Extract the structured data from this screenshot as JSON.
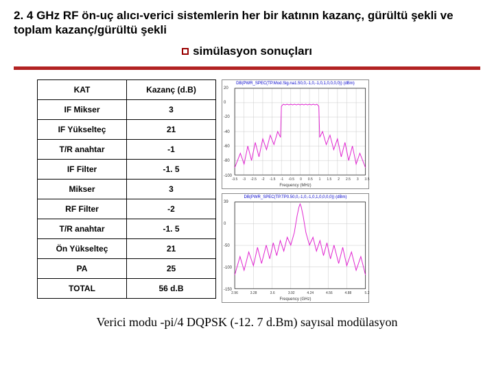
{
  "title": {
    "line1": "2. 4 GHz RF ön-uç alıcı-verici sistemlerin her bir katının kazanç, gürültü şekli ve toplam kazanç/gürültü şekli",
    "line2": "simülasyon sonuçları"
  },
  "table": {
    "headers": [
      "KAT",
      "Kazanç (d.B)"
    ],
    "rows": [
      [
        "IF Mikser",
        "3"
      ],
      [
        "IF Yükselteç",
        "21"
      ],
      [
        "T/R anahtar",
        "-1"
      ],
      [
        "IF Filter",
        "-1. 5"
      ],
      [
        "Mikser",
        "3"
      ],
      [
        "RF Filter",
        "-2"
      ],
      [
        "T/R anahtar",
        "-1. 5"
      ],
      [
        "Ön Yükselteç",
        "21"
      ],
      [
        "PA",
        "25"
      ],
      [
        "TOTAL",
        "56 d.B"
      ]
    ]
  },
  "chart1": {
    "legend": "DB(PWR_SPEC(TP.Mod.Sig.na1.50,0,-1,0,-1,0,1,0,0,0,0)) (dBm)",
    "xlabel": "Frequency (MHz)",
    "yticks": [
      "20",
      "0",
      "-20",
      "-40",
      "-60",
      "-80",
      "-100"
    ],
    "xticks": [
      "-3.5",
      "-3",
      "-2.5",
      "-2",
      "-1.5",
      "-1",
      "-0.5",
      "0",
      "0.5",
      "1",
      "1.5",
      "2",
      "2.5",
      "3",
      "3.5"
    ],
    "line_color": "#e022d0",
    "grid_color": "#c8c8c8",
    "ylim": [
      -100,
      20
    ],
    "series": [
      [
        -3.5,
        -90
      ],
      [
        -3.2,
        -70
      ],
      [
        -3.0,
        -85
      ],
      [
        -2.8,
        -60
      ],
      [
        -2.6,
        -80
      ],
      [
        -2.4,
        -55
      ],
      [
        -2.2,
        -75
      ],
      [
        -2.0,
        -50
      ],
      [
        -1.8,
        -65
      ],
      [
        -1.6,
        -45
      ],
      [
        -1.4,
        -58
      ],
      [
        -1.2,
        -40
      ],
      [
        -1.05,
        -48
      ],
      [
        -1.0,
        -5
      ],
      [
        -0.9,
        -2
      ],
      [
        -0.8,
        -3
      ],
      [
        -0.7,
        -2
      ],
      [
        -0.6,
        -3
      ],
      [
        -0.5,
        -2
      ],
      [
        -0.4,
        -3
      ],
      [
        -0.3,
        -2
      ],
      [
        -0.2,
        -3
      ],
      [
        -0.1,
        -2
      ],
      [
        0,
        -3
      ],
      [
        0.1,
        -2
      ],
      [
        0.2,
        -3
      ],
      [
        0.3,
        -2
      ],
      [
        0.4,
        -3
      ],
      [
        0.5,
        -2
      ],
      [
        0.6,
        -3
      ],
      [
        0.7,
        -2
      ],
      [
        0.8,
        -3
      ],
      [
        0.9,
        -2
      ],
      [
        1.0,
        -5
      ],
      [
        1.05,
        -48
      ],
      [
        1.2,
        -40
      ],
      [
        1.4,
        -58
      ],
      [
        1.6,
        -45
      ],
      [
        1.8,
        -65
      ],
      [
        2.0,
        -50
      ],
      [
        2.2,
        -75
      ],
      [
        2.4,
        -55
      ],
      [
        2.6,
        -80
      ],
      [
        2.8,
        -60
      ],
      [
        3.0,
        -85
      ],
      [
        3.2,
        -70
      ],
      [
        3.5,
        -90
      ]
    ]
  },
  "chart2": {
    "legend": "DB(PWR_SPEC(TP.TP0.50,0,-1,0,-1,0,1,0,0,0,0)) (dBm)",
    "xlabel": "Frequency (GHz)",
    "yticks": [
      "39",
      "0",
      "-50",
      "-100",
      "-150"
    ],
    "xticks": [
      "2.96",
      "3.28",
      "3.6",
      "3.92",
      "4.24",
      "4.56",
      "4.88",
      "5.2"
    ],
    "line_color": "#e022d0",
    "grid_color": "#c8c8c8",
    "ylim": [
      -150,
      39
    ],
    "series": [
      [
        2.96,
        -120
      ],
      [
        3.05,
        -80
      ],
      [
        3.12,
        -110
      ],
      [
        3.2,
        -70
      ],
      [
        3.28,
        -100
      ],
      [
        3.35,
        -60
      ],
      [
        3.42,
        -95
      ],
      [
        3.5,
        -55
      ],
      [
        3.56,
        -85
      ],
      [
        3.62,
        -50
      ],
      [
        3.68,
        -78
      ],
      [
        3.74,
        -45
      ],
      [
        3.8,
        -68
      ],
      [
        3.86,
        -38
      ],
      [
        3.92,
        -55
      ],
      [
        3.98,
        -28
      ],
      [
        4.03,
        10
      ],
      [
        4.06,
        28
      ],
      [
        4.08,
        35
      ],
      [
        4.1,
        28
      ],
      [
        4.13,
        10
      ],
      [
        4.18,
        -28
      ],
      [
        4.24,
        -55
      ],
      [
        4.3,
        -38
      ],
      [
        4.36,
        -68
      ],
      [
        4.42,
        -45
      ],
      [
        4.48,
        -78
      ],
      [
        4.54,
        -50
      ],
      [
        4.6,
        -85
      ],
      [
        4.66,
        -55
      ],
      [
        4.74,
        -95
      ],
      [
        4.81,
        -60
      ],
      [
        4.88,
        -100
      ],
      [
        4.96,
        -70
      ],
      [
        5.04,
        -110
      ],
      [
        5.12,
        -80
      ],
      [
        5.2,
        -120
      ]
    ]
  },
  "caption": "Verici modu -pi/4 DQPSK (-12. 7 d.Bm)  sayısal modülasyon"
}
